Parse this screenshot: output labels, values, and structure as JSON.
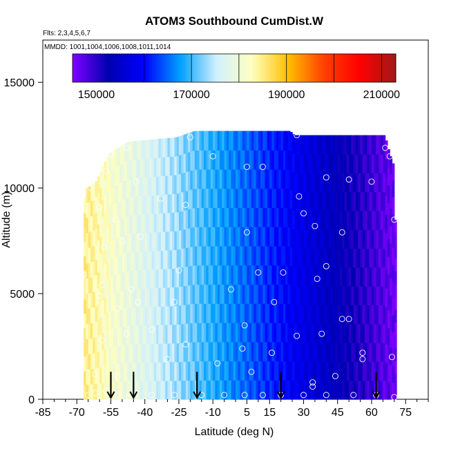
{
  "chart_data": {
    "type": "heatmap",
    "title": "ATOM3 Southbound CumDist.W",
    "flights_label": "Flts: 2,3,4,5,6,7",
    "dates_label": "MMDD: 1001,1004,1006,1008,1011,1014",
    "xlabel": "Latitude (deg N)",
    "ylabel": "Altitude (m)",
    "xlim": [
      -85,
      85
    ],
    "ylim": [
      0,
      17000
    ],
    "x_ticks": [
      -85,
      -70,
      -55,
      -40,
      -25,
      -10,
      5,
      15,
      30,
      45,
      60,
      75
    ],
    "y_ticks": [
      0,
      5000,
      10000,
      15000
    ],
    "colorbar": {
      "range": [
        145000,
        213000
      ],
      "tick_labels": [
        150000,
        170000,
        190000,
        210000
      ],
      "divisions": [
        160000,
        170000,
        180000,
        190000,
        200000,
        210000
      ],
      "colors": [
        "#7f00ff",
        "#0000b0",
        "#0000ff",
        "#00a0ff",
        "#d0f0ff",
        "#ffffc0",
        "#ffc000",
        "#ff4000",
        "#ff0000",
        "#a01818"
      ]
    },
    "heatmap": {
      "x_start": -67,
      "x_end": 71,
      "value_south": 185000,
      "value_north": 146000,
      "top_envelope": [
        {
          "lat": -68,
          "alt": 8000
        },
        {
          "lat": -66,
          "alt": 10000
        },
        {
          "lat": -62,
          "alt": 10200
        },
        {
          "lat": -56,
          "alt": 11600
        },
        {
          "lat": -47,
          "alt": 12200
        },
        {
          "lat": -26,
          "alt": 12400
        },
        {
          "lat": -18,
          "alt": 12700
        },
        {
          "lat": 24,
          "alt": 12700
        },
        {
          "lat": 26,
          "alt": 12500
        },
        {
          "lat": 66,
          "alt": 12500
        },
        {
          "lat": 67,
          "alt": 12000
        },
        {
          "lat": 70,
          "alt": 11000
        },
        {
          "lat": 71,
          "alt": 6000
        }
      ]
    },
    "sample_points": [
      [
        -65,
        200
      ],
      [
        -62,
        300
      ],
      [
        -57,
        400
      ],
      [
        -52,
        200
      ],
      [
        -47,
        100
      ],
      [
        -37,
        200
      ],
      [
        -27,
        200
      ],
      [
        -15,
        200
      ],
      [
        -5,
        200
      ],
      [
        4,
        200
      ],
      [
        12,
        200
      ],
      [
        20,
        200
      ],
      [
        30,
        200
      ],
      [
        40,
        200
      ],
      [
        52,
        200
      ],
      [
        62,
        200
      ],
      [
        70,
        100
      ],
      [
        -62,
        1200
      ],
      [
        -52,
        1100
      ],
      [
        -30,
        1900
      ],
      [
        -8,
        1700
      ],
      [
        7,
        1300
      ],
      [
        34,
        800
      ],
      [
        34,
        600
      ],
      [
        44,
        1100
      ],
      [
        56,
        1900
      ],
      [
        69,
        2000
      ],
      [
        -70,
        2000
      ],
      [
        -59,
        2800
      ],
      [
        -48,
        3100
      ],
      [
        -37,
        3300
      ],
      [
        -22,
        2600
      ],
      [
        3,
        2400
      ],
      [
        16,
        2200
      ],
      [
        27,
        3000
      ],
      [
        38,
        3100
      ],
      [
        50,
        3800
      ],
      [
        56,
        2200
      ],
      [
        -60,
        4900
      ],
      [
        -52,
        4300
      ],
      [
        -43,
        4600
      ],
      [
        -27,
        4600
      ],
      [
        4,
        3500
      ],
      [
        17,
        4600
      ],
      [
        36,
        5700
      ],
      [
        47,
        3800
      ],
      [
        -67,
        5900
      ],
      [
        -59,
        5400
      ],
      [
        -46,
        5200
      ],
      [
        -25,
        6100
      ],
      [
        -2,
        5200
      ],
      [
        10,
        6000
      ],
      [
        21,
        6000
      ],
      [
        40,
        6300
      ],
      [
        -69,
        6700
      ],
      [
        -58,
        7200
      ],
      [
        -50,
        7500
      ],
      [
        -42,
        7700
      ],
      [
        5,
        7900
      ],
      [
        35,
        8200
      ],
      [
        47,
        7900
      ],
      [
        -69,
        9300
      ],
      [
        -60,
        9100
      ],
      [
        -53,
        8500
      ],
      [
        -33,
        9500
      ],
      [
        -22,
        9200
      ],
      [
        28,
        9600
      ],
      [
        30,
        8800
      ],
      [
        70,
        8500
      ],
      [
        -64,
        10000
      ],
      [
        -57,
        10800
      ],
      [
        -44,
        10300
      ],
      [
        -10,
        11500
      ],
      [
        5,
        11000
      ],
      [
        12,
        11000
      ],
      [
        40,
        10500
      ],
      [
        50,
        10400
      ],
      [
        60,
        10300
      ],
      [
        -55,
        11600
      ],
      [
        -48,
        11900
      ],
      [
        -20,
        12400
      ],
      [
        27,
        12500
      ],
      [
        66,
        11900
      ],
      [
        68,
        11500
      ]
    ],
    "flight_markers": [
      -55,
      -45,
      -17,
      20,
      62
    ]
  }
}
